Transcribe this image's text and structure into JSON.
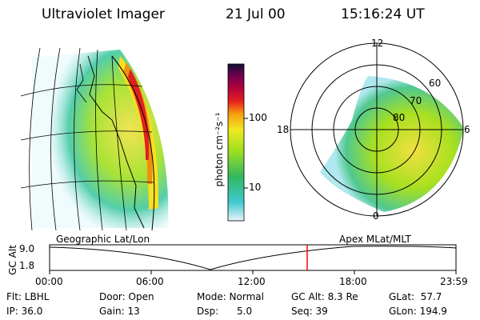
{
  "header": {
    "instrument": "Ultraviolet Imager",
    "date": "21 Jul 00",
    "time": "15:16:24 UT"
  },
  "colorbar": {
    "label": "photon cm⁻²s⁻¹",
    "ticks": [
      "100",
      "10"
    ]
  },
  "left_panel": {
    "caption": "Geographic Lat/Lon"
  },
  "polar_panel": {
    "caption": "Apex MLat/MLT",
    "mlt_labels": {
      "top": "12",
      "left": "18",
      "right": "6",
      "bottom": "0"
    },
    "lat_labels": [
      "60",
      "70",
      "80"
    ]
  },
  "timeline": {
    "ylabel": "GC Alt",
    "yticks": [
      "9.0",
      "1.8"
    ],
    "xticks": [
      "00:00",
      "06:00",
      "12:00",
      "18:00",
      "23:59"
    ],
    "current_marker_color": "#ff0000"
  },
  "info": {
    "flt": "Flt: LBHL",
    "ip": "IP: 36.0",
    "door": "Door: Open",
    "gain": "Gain: 13",
    "mode": "Mode: Normal",
    "dsp": "Dsp:      5.0",
    "gcalt": "GC Alt: 8.3 Re",
    "seq": "Seq: 39",
    "glat": "GLat:  57.7",
    "glon": "GLon: 194.9"
  }
}
